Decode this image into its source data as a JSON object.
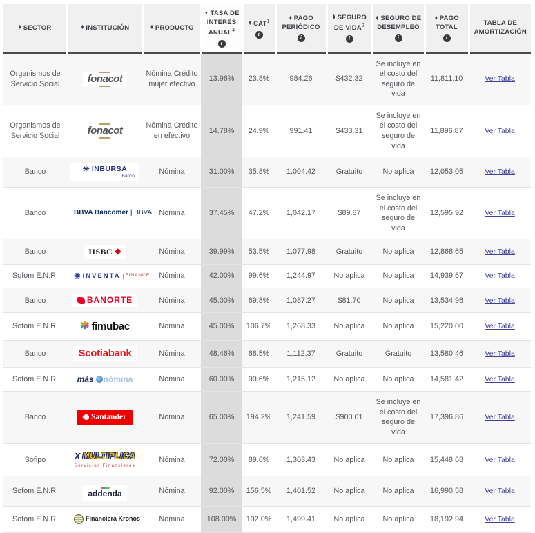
{
  "colors": {
    "link": "#41419b",
    "header_bottom_border": "#4a4a4a",
    "row_stripe": "#f7f7f7",
    "tasa_column_bg": "#dcdcdc",
    "info_icon_bg": "#3a3a3a"
  },
  "table": {
    "columns": [
      {
        "label": "SECTOR",
        "sort": "both"
      },
      {
        "label": "INSTITUCIÓN",
        "sort": "both"
      },
      {
        "label": "PRODUCTO",
        "sort": "both"
      },
      {
        "label": "TASA DE INTERÉS ANUAL",
        "sup": "4",
        "sort": "desc",
        "info": true
      },
      {
        "label": "CAT",
        "sup": "1",
        "sort": "both",
        "info": true
      },
      {
        "label": "PAGO PERIÓDICO",
        "sort": "both",
        "info": true
      },
      {
        "label": "SEGURO DE VIDA",
        "sup": "2",
        "sort": "both",
        "info": true
      },
      {
        "label": "SEGURO DE DESEMPLEO",
        "sort": "both",
        "info": true
      },
      {
        "label": "PAGO TOTAL",
        "sort": "both",
        "info": true
      },
      {
        "label": "TABLA DE AMORTIZACIÓN"
      }
    ],
    "link_label": "Ver Tabla",
    "rows": [
      {
        "sector": "Organismos de Servicio Social",
        "producto": "Nómina Crédito mujer efectivo",
        "tasa": "13.96%",
        "cat": "23.8%",
        "pago_periodico": "984.26",
        "seguro_vida": "$432.32",
        "seguro_desempleo": "Se incluye en el costo del seguro de vida",
        "pago_total": "11,811.10",
        "logo": {
          "type": "fonacot",
          "parts": [
            {
              "c": "main",
              "t": "fonacot"
            }
          ]
        }
      },
      {
        "sector": "Organismos de Servicio Social",
        "producto": "Nómina Crédito en efectivo",
        "tasa": "14.78%",
        "cat": "24.9%",
        "pago_periodico": "991.41",
        "seguro_vida": "$433.31",
        "seguro_desempleo": "Se incluye en el costo del seguro de vida",
        "pago_total": "11,896.87",
        "logo": {
          "type": "fonacot",
          "parts": [
            {
              "c": "main",
              "t": "fonacot"
            }
          ]
        }
      },
      {
        "sector": "Banco",
        "producto": "Nómina",
        "tasa": "31.00%",
        "cat": "35.8%",
        "pago_periodico": "1,004.42",
        "seguro_vida": "Gratuito",
        "seguro_desempleo": "No aplica",
        "pago_total": "12,053.05",
        "logo": {
          "type": "inbursa",
          "parts": [
            {
              "c": "icon",
              "n": "inbursa-pinwheel-icon"
            },
            {
              "c": "main",
              "t": "INBURSA"
            },
            {
              "c": "sub",
              "t": "Banco"
            }
          ]
        }
      },
      {
        "sector": "Banco",
        "producto": "Nómina",
        "tasa": "37.45%",
        "cat": "47.2%",
        "pago_periodico": "1,042.17",
        "seguro_vida": "$89.87",
        "seguro_desempleo": "Se incluye en el costo del seguro de vida",
        "pago_total": "12,595.92",
        "logo": {
          "type": "bbva",
          "parts": [
            {
              "c": "main",
              "t": "BBVA Bancomer"
            },
            {
              "c": "alt",
              "t": "| BBVA"
            }
          ]
        }
      },
      {
        "sector": "Banco",
        "producto": "Nómina",
        "tasa": "39.99%",
        "cat": "53.5%",
        "pago_periodico": "1,077.98",
        "seguro_vida": "Gratuito",
        "seguro_desempleo": "No aplica",
        "pago_total": "12,868.65",
        "logo": {
          "type": "hsbc",
          "parts": [
            {
              "c": "main",
              "t": "HSBC"
            },
            {
              "c": "icon",
              "n": "hsbc-hexagon-icon"
            }
          ]
        }
      },
      {
        "sector": "Sofom E.N.R.",
        "producto": "Nómina",
        "tasa": "42.00%",
        "cat": "99.6%",
        "pago_periodico": "1,244.97",
        "seguro_vida": "No aplica",
        "seguro_desempleo": "No aplica",
        "pago_total": "14,939.67",
        "logo": {
          "type": "inventa",
          "parts": [
            {
              "c": "icon",
              "n": "inventa-circle-icon"
            },
            {
              "c": "main",
              "t": "INVENTA"
            },
            {
              "c": "alt",
              "t": "FINANCE"
            }
          ]
        }
      },
      {
        "sector": "Banco",
        "producto": "Nómina",
        "tasa": "45.00%",
        "cat": "69.8%",
        "pago_periodico": "1,087.27",
        "seguro_vida": "$81.70",
        "seguro_desempleo": "No aplica",
        "pago_total": "13,534.96",
        "logo": {
          "type": "banorte",
          "parts": [
            {
              "c": "icon",
              "n": "banorte-mark-icon"
            },
            {
              "c": "main",
              "t": "BANORTE"
            }
          ]
        }
      },
      {
        "sector": "Sofom E.N.R.",
        "producto": "Nómina",
        "tasa": "45.00%",
        "cat": "106.7%",
        "pago_periodico": "1,268.33",
        "seguro_vida": "No aplica",
        "seguro_desempleo": "No aplica",
        "pago_total": "15,220.00",
        "logo": {
          "type": "fimubac",
          "parts": [
            {
              "c": "icon",
              "n": "fimubac-asterisk-icon"
            },
            {
              "c": "main",
              "t": "fimubac"
            }
          ]
        }
      },
      {
        "sector": "Banco",
        "producto": "Nómina",
        "tasa": "48.46%",
        "cat": "68.5%",
        "pago_periodico": "1,112.37",
        "seguro_vida": "Gratuito",
        "seguro_desempleo": "Gratuito",
        "pago_total": "13,580.46",
        "logo": {
          "type": "scotiabank",
          "parts": [
            {
              "c": "main",
              "t": "Scotiabank"
            }
          ]
        }
      },
      {
        "sector": "Sofom E.N.R.",
        "producto": "Nómina",
        "tasa": "60.00%",
        "cat": "90.6%",
        "pago_periodico": "1,215.12",
        "seguro_vida": "No aplica",
        "seguro_desempleo": "No aplica",
        "pago_total": "14,581.42",
        "logo": {
          "type": "masnomina",
          "parts": [
            {
              "c": "main",
              "t": "más"
            },
            {
              "c": "icon",
              "n": "masnomina-coin-icon"
            },
            {
              "c": "alt",
              "t": "nómina"
            }
          ]
        }
      },
      {
        "sector": "Banco",
        "producto": "Nómina",
        "tasa": "65.00%",
        "cat": "194.2%",
        "pago_periodico": "1,241.59",
        "seguro_vida": "$900.01",
        "seguro_desempleo": "Se incluye en el costo del seguro de vida",
        "pago_total": "17,396.86",
        "logo": {
          "type": "santander",
          "parts": [
            {
              "c": "icon",
              "n": "santander-flame-icon"
            },
            {
              "c": "main",
              "t": "Santander"
            }
          ]
        }
      },
      {
        "sector": "Sofipo",
        "producto": "Nómina",
        "tasa": "72.00%",
        "cat": "89.6%",
        "pago_periodico": "1,303.43",
        "seguro_vida": "No aplica",
        "seguro_desempleo": "No aplica",
        "pago_total": "15,448.68",
        "logo": {
          "type": "multiplica",
          "parts": [
            {
              "c": "icon",
              "n": "multiplica-runner-icon"
            },
            {
              "c": "main",
              "t": "MULTIPLICA"
            },
            {
              "c": "sub",
              "t": "Servicios Financieros"
            }
          ]
        }
      },
      {
        "sector": "Sofom E.N.R.",
        "producto": "Nómina",
        "tasa": "92.00%",
        "cat": "156.5%",
        "pago_periodico": "1,401.52",
        "seguro_vida": "No aplica",
        "seguro_desempleo": "No aplica",
        "pago_total": "16,990.58",
        "logo": {
          "type": "addenda",
          "parts": [
            {
              "c": "icon",
              "n": "addenda-dots-icon"
            },
            {
              "c": "main",
              "t": "addenda"
            }
          ]
        }
      },
      {
        "sector": "Sofom E.N.R.",
        "producto": "Nómina",
        "tasa": "108.00%",
        "cat": "192.0%",
        "pago_periodico": "1,499.41",
        "seguro_vida": "No aplica",
        "seguro_desempleo": "No aplica",
        "pago_total": "18,192.94",
        "logo": {
          "type": "kronos",
          "parts": [
            {
              "c": "icon",
              "n": "kronos-globe-icon"
            },
            {
              "c": "main",
              "t": "Financiera Kronos"
            }
          ]
        }
      }
    ]
  }
}
